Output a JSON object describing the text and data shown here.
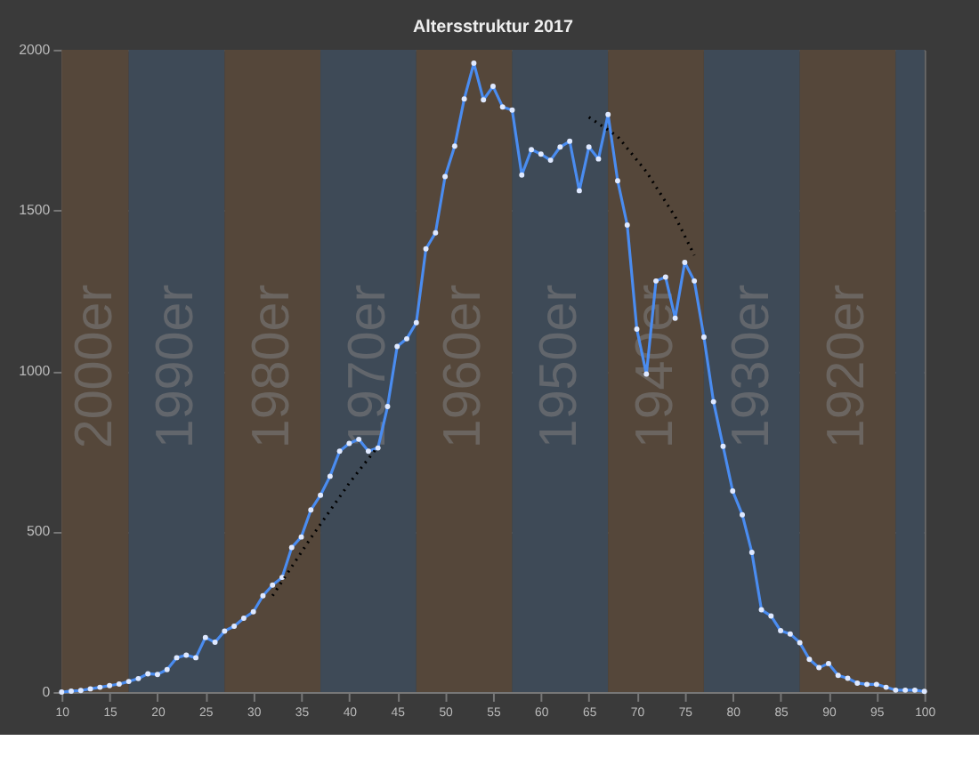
{
  "chart_data": {
    "type": "line",
    "title": "Altersstruktur 2017",
    "x": [
      10,
      11,
      12,
      13,
      14,
      15,
      16,
      17,
      18,
      19,
      20,
      21,
      22,
      23,
      24,
      25,
      26,
      27,
      28,
      29,
      30,
      31,
      32,
      33,
      34,
      35,
      36,
      37,
      38,
      39,
      40,
      41,
      42,
      43,
      44,
      45,
      46,
      47,
      48,
      49,
      50,
      51,
      52,
      53,
      54,
      55,
      56,
      57,
      58,
      59,
      60,
      61,
      62,
      63,
      64,
      65,
      66,
      67,
      68,
      69,
      70,
      71,
      72,
      73,
      74,
      75,
      76,
      77,
      78,
      79,
      80,
      81,
      82,
      83,
      84,
      85,
      86,
      87,
      88,
      89,
      90,
      91,
      92,
      93,
      94,
      95,
      96,
      97,
      98,
      99,
      100
    ],
    "series": [
      {
        "color": "#4a8cf0",
        "marker": "circle",
        "line_style": "solid",
        "values": [
          0,
          3,
          5,
          10,
          15,
          20,
          25,
          33,
          42,
          57,
          55,
          70,
          107,
          115,
          107,
          170,
          155,
          190,
          205,
          230,
          250,
          300,
          333,
          357,
          450,
          483,
          567,
          613,
          672,
          750,
          774,
          787,
          750,
          760,
          889,
          1076,
          1100,
          1150,
          1380,
          1430,
          1605,
          1700,
          1847,
          1958,
          1844,
          1886,
          1822,
          1812,
          1610,
          1689,
          1675,
          1656,
          1697,
          1715,
          1561,
          1697,
          1660,
          1798,
          1592,
          1454,
          1130,
          990,
          1280,
          1292,
          1164,
          1338,
          1280,
          1105,
          904,
          765,
          626,
          552,
          435,
          256,
          237,
          191,
          181,
          154,
          102,
          76,
          89,
          52,
          43,
          28,
          24,
          24,
          15,
          6,
          6,
          6,
          2
        ]
      },
      {
        "type": "line",
        "color": "#000000",
        "marker": "none",
        "line_style": "dotted",
        "x": [
          32,
          36,
          40,
          43
        ],
        "values": [
          300,
          480,
          650,
          765
        ]
      },
      {
        "type": "line",
        "color": "#000000",
        "marker": "none",
        "line_style": "dotted",
        "x": [
          65,
          68,
          71,
          74,
          76
        ],
        "values": [
          1790,
          1730,
          1620,
          1480,
          1360
        ]
      }
    ],
    "xlim": [
      10,
      100
    ],
    "xticks": [
      10,
      15,
      20,
      25,
      30,
      35,
      40,
      45,
      50,
      55,
      60,
      65,
      70,
      75,
      80,
      85,
      90,
      95,
      100
    ],
    "ylim": [
      0,
      2000
    ],
    "yticks": [
      0,
      500,
      1000,
      1500,
      2000
    ],
    "grid": true,
    "bands": [
      {
        "axis": "x",
        "from": 10,
        "to": 17,
        "label": "2000er",
        "color": "#55473a"
      },
      {
        "axis": "x",
        "from": 17,
        "to": 27,
        "label": "1990er",
        "color": "#3e4a57"
      },
      {
        "axis": "x",
        "from": 27,
        "to": 37,
        "label": "1980er",
        "color": "#55473a"
      },
      {
        "axis": "x",
        "from": 37,
        "to": 47,
        "label": "1970er",
        "color": "#3e4a57"
      },
      {
        "axis": "x",
        "from": 47,
        "to": 57,
        "label": "1960er",
        "color": "#55473a"
      },
      {
        "axis": "x",
        "from": 57,
        "to": 67,
        "label": "1950er",
        "color": "#3e4a57"
      },
      {
        "axis": "x",
        "from": 67,
        "to": 77,
        "label": "1940er",
        "color": "#55473a"
      },
      {
        "axis": "x",
        "from": 77,
        "to": 87,
        "label": "1930er",
        "color": "#3e4a57"
      },
      {
        "axis": "x",
        "from": 87,
        "to": 97,
        "label": "1920er",
        "color": "#55473a"
      },
      {
        "axis": "x",
        "from": 97,
        "to": 100,
        "label": null,
        "color": "#3e4a57"
      }
    ]
  }
}
